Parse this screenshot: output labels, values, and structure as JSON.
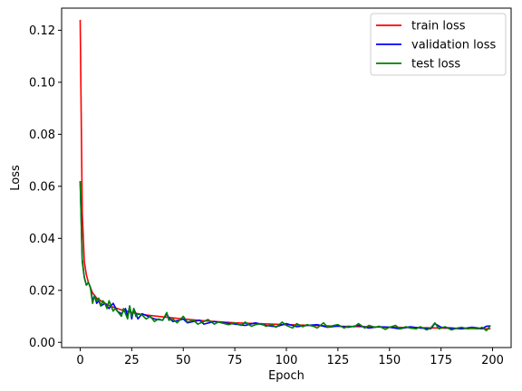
{
  "chart_data": {
    "type": "line",
    "title": "",
    "xlabel": "Epoch",
    "ylabel": "Loss",
    "xlim": [
      -9,
      209
    ],
    "ylim": [
      -0.002,
      0.1285
    ],
    "xticks": [
      0,
      25,
      50,
      75,
      100,
      125,
      150,
      175,
      200
    ],
    "yticks": [
      0.0,
      0.02,
      0.04,
      0.06,
      0.08,
      0.1,
      0.12
    ],
    "ytick_labels": [
      "0.00",
      "0.02",
      "0.04",
      "0.06",
      "0.08",
      "0.10",
      "0.12"
    ],
    "grid": false,
    "legend_position": "upper-right",
    "series": [
      {
        "name": "train loss",
        "color": "#ff0000",
        "x": [
          0,
          1,
          2,
          3,
          4,
          5,
          6,
          8,
          10,
          12,
          15,
          20,
          25,
          30,
          40,
          50,
          60,
          75,
          100,
          125,
          150,
          175,
          199
        ],
        "y": [
          0.124,
          0.05,
          0.031,
          0.026,
          0.023,
          0.021,
          0.019,
          0.017,
          0.016,
          0.015,
          0.0138,
          0.0125,
          0.0115,
          0.0107,
          0.0098,
          0.009,
          0.0083,
          0.0075,
          0.0068,
          0.0062,
          0.0058,
          0.0055,
          0.0052
        ]
      },
      {
        "name": "validation loss",
        "color": "#0000ff",
        "x": [
          0,
          1,
          2,
          3,
          4,
          5,
          6,
          7,
          8,
          9,
          10,
          12,
          14,
          16,
          18,
          20,
          22,
          23,
          24,
          25,
          26,
          27,
          28,
          30,
          33,
          36,
          40,
          42,
          43,
          45,
          48,
          50,
          52,
          55,
          58,
          60,
          65,
          70,
          75,
          80,
          85,
          90,
          95,
          100,
          105,
          110,
          115,
          120,
          125,
          130,
          135,
          140,
          145,
          150,
          155,
          160,
          165,
          170,
          172,
          175,
          180,
          185,
          190,
          195,
          197,
          199
        ],
        "y": [
          0.062,
          0.032,
          0.025,
          0.022,
          0.023,
          0.021,
          0.016,
          0.018,
          0.015,
          0.016,
          0.014,
          0.015,
          0.013,
          0.015,
          0.012,
          0.011,
          0.013,
          0.01,
          0.014,
          0.009,
          0.013,
          0.011,
          0.009,
          0.011,
          0.01,
          0.009,
          0.0085,
          0.011,
          0.0095,
          0.008,
          0.0085,
          0.009,
          0.0075,
          0.008,
          0.0085,
          0.007,
          0.008,
          0.0075,
          0.007,
          0.0065,
          0.0075,
          0.0065,
          0.006,
          0.0072,
          0.006,
          0.0065,
          0.0068,
          0.0058,
          0.0063,
          0.0058,
          0.0065,
          0.0055,
          0.006,
          0.0058,
          0.0052,
          0.006,
          0.0055,
          0.0052,
          0.0072,
          0.0058,
          0.0055,
          0.0052,
          0.0058,
          0.0053,
          0.0062,
          0.0063
        ]
      },
      {
        "name": "test loss",
        "color": "#008000",
        "x": [
          0,
          1,
          2,
          3,
          4,
          5,
          6,
          7,
          8,
          9,
          10,
          11,
          12,
          13,
          14,
          15,
          16,
          17,
          18,
          19,
          20,
          21,
          22,
          23,
          24,
          25,
          26,
          27,
          28,
          30,
          32,
          34,
          36,
          38,
          40,
          42,
          43,
          45,
          47,
          50,
          52,
          55,
          57,
          60,
          62,
          65,
          67,
          70,
          72,
          75,
          78,
          80,
          83,
          85,
          88,
          90,
          93,
          95,
          98,
          100,
          103,
          105,
          108,
          110,
          113,
          115,
          118,
          120,
          123,
          125,
          128,
          130,
          133,
          135,
          138,
          140,
          143,
          145,
          148,
          150,
          153,
          155,
          158,
          160,
          163,
          165,
          168,
          170,
          172,
          174,
          177,
          180,
          183,
          185,
          188,
          190,
          193,
          195,
          197,
          199
        ],
        "y": [
          0.062,
          0.031,
          0.025,
          0.022,
          0.023,
          0.021,
          0.015,
          0.018,
          0.016,
          0.017,
          0.014,
          0.016,
          0.015,
          0.013,
          0.016,
          0.014,
          0.012,
          0.013,
          0.012,
          0.011,
          0.01,
          0.013,
          0.011,
          0.009,
          0.014,
          0.01,
          0.013,
          0.01,
          0.011,
          0.0105,
          0.009,
          0.01,
          0.008,
          0.009,
          0.0085,
          0.0115,
          0.0085,
          0.009,
          0.0075,
          0.01,
          0.0078,
          0.0085,
          0.007,
          0.008,
          0.0088,
          0.007,
          0.0078,
          0.0072,
          0.0068,
          0.0075,
          0.0065,
          0.0078,
          0.0062,
          0.0068,
          0.0072,
          0.0062,
          0.0068,
          0.0058,
          0.0078,
          0.0065,
          0.0055,
          0.0072,
          0.006,
          0.0068,
          0.0062,
          0.0055,
          0.0075,
          0.0058,
          0.0065,
          0.0068,
          0.0055,
          0.0062,
          0.006,
          0.0072,
          0.0055,
          0.0065,
          0.0058,
          0.0062,
          0.005,
          0.0058,
          0.0065,
          0.0052,
          0.006,
          0.0055,
          0.0052,
          0.006,
          0.0048,
          0.0055,
          0.0075,
          0.0052,
          0.006,
          0.0048,
          0.0055,
          0.0058,
          0.0052,
          0.0055,
          0.0052,
          0.0058,
          0.0045,
          0.0065
        ]
      }
    ]
  }
}
